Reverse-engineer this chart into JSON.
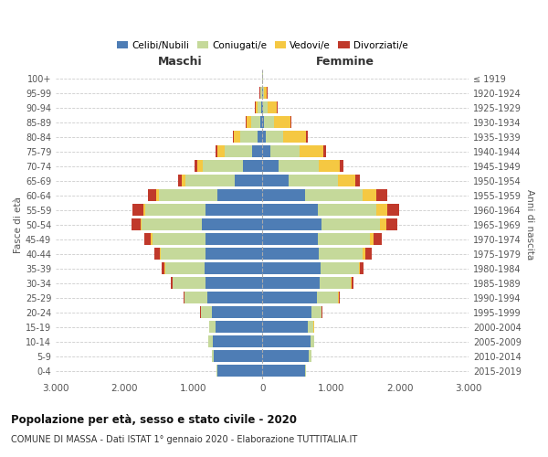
{
  "age_groups": [
    "0-4",
    "5-9",
    "10-14",
    "15-19",
    "20-24",
    "25-29",
    "30-34",
    "35-39",
    "40-44",
    "45-49",
    "50-54",
    "55-59",
    "60-64",
    "65-69",
    "70-74",
    "75-79",
    "80-84",
    "85-89",
    "90-94",
    "95-99",
    "100+"
  ],
  "birth_years": [
    "2015-2019",
    "2010-2014",
    "2005-2009",
    "2000-2004",
    "1995-1999",
    "1990-1994",
    "1985-1989",
    "1980-1984",
    "1975-1979",
    "1970-1974",
    "1965-1969",
    "1960-1964",
    "1955-1959",
    "1950-1954",
    "1945-1949",
    "1940-1944",
    "1935-1939",
    "1930-1934",
    "1925-1929",
    "1920-1924",
    "≤ 1919"
  ],
  "maschi": {
    "celibi": [
      650,
      700,
      720,
      680,
      730,
      800,
      820,
      840,
      830,
      820,
      880,
      820,
      650,
      400,
      280,
      150,
      70,
      35,
      20,
      8,
      2
    ],
    "coniugati": [
      20,
      35,
      60,
      90,
      160,
      330,
      480,
      570,
      650,
      780,
      870,
      880,
      850,
      720,
      580,
      400,
      250,
      130,
      55,
      18,
      3
    ],
    "vedovi": [
      1,
      1,
      1,
      2,
      2,
      3,
      5,
      8,
      10,
      15,
      20,
      30,
      45,
      55,
      80,
      100,
      90,
      60,
      25,
      8,
      2
    ],
    "divorziati": [
      1,
      2,
      3,
      5,
      8,
      15,
      25,
      40,
      80,
      100,
      130,
      150,
      120,
      50,
      40,
      30,
      20,
      12,
      8,
      3,
      1
    ]
  },
  "femmine": {
    "nubili": [
      620,
      680,
      700,
      660,
      710,
      790,
      830,
      840,
      820,
      800,
      860,
      800,
      620,
      380,
      230,
      120,
      50,
      25,
      12,
      5,
      2
    ],
    "coniugate": [
      18,
      30,
      55,
      85,
      150,
      310,
      460,
      560,
      640,
      760,
      850,
      860,
      840,
      720,
      590,
      420,
      250,
      140,
      60,
      20,
      3
    ],
    "vedove": [
      1,
      2,
      2,
      3,
      5,
      8,
      10,
      20,
      40,
      60,
      90,
      150,
      200,
      250,
      300,
      340,
      330,
      240,
      140,
      45,
      8
    ],
    "divorziate": [
      1,
      2,
      3,
      6,
      10,
      18,
      30,
      50,
      90,
      120,
      160,
      180,
      150,
      70,
      55,
      40,
      25,
      15,
      10,
      4,
      1
    ]
  },
  "colors": {
    "celibi_nubili": "#4E7DB5",
    "coniugati": "#C5D99A",
    "vedovi": "#F5C842",
    "divorziati": "#C0392B"
  },
  "xlim": 3000,
  "xticks": [
    -3000,
    -2000,
    -1000,
    0,
    1000,
    2000,
    3000
  ],
  "title": "Popolazione per età, sesso e stato civile - 2020",
  "subtitle": "COMUNE DI MASSA - Dati ISTAT 1° gennaio 2020 - Elaborazione TUTTITALIA.IT",
  "ylabel": "Fasce di età",
  "ylabel_right": "Anni di nascita",
  "xlabel_left": "Maschi",
  "xlabel_right": "Femmine",
  "legend_labels": [
    "Celibi/Nubili",
    "Coniugati/e",
    "Vedovi/e",
    "Divorziati/e"
  ]
}
